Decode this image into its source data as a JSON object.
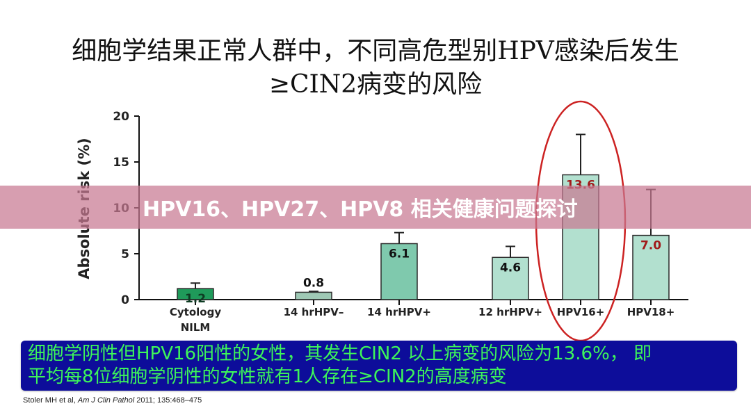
{
  "title": {
    "line1": "细胞学结果正常人群中，不同高危型别HPV感染后发生",
    "line2": "≥CIN2病变的风险"
  },
  "banner": {
    "text": "HPV16、HPV27、HPV8 相关健康问题探讨"
  },
  "callout": {
    "line1": "细胞学阴性但HPV16阳性的女性，其发生CIN2 以上病变的风险为13.6%，  即",
    "line2": "平均每8位细胞学阴性的女性就有1人存在≥CIN2的高度病变",
    "text_color": "#3df55a",
    "background_color": "#0d0d9a"
  },
  "citation": {
    "authors": "Stoler MH et al, ",
    "journal": "Am J Clin Pathol",
    "details": " 2011; 135:468–475"
  },
  "chart_data": {
    "type": "bar",
    "title": "细胞学结果正常人群中，不同高危型别HPV感染后发生≥CIN2病变的风险",
    "xlabel": "",
    "ylabel": "Absolute risk (%)",
    "ylim": [
      0,
      20
    ],
    "yticks": [
      0,
      5,
      10,
      15,
      20
    ],
    "grid": false,
    "legend": null,
    "categories": [
      "Cytology\nNILM",
      "14 hrHPV–",
      "14 hrHPV+",
      "12 hrHPV+",
      "HPV16+",
      "HPV18+"
    ],
    "category_labels": [
      [
        "Cytology",
        "NILM"
      ],
      [
        "14 hrHPV–"
      ],
      [
        "14 hrHPV+"
      ],
      [
        "12 hrHPV+"
      ],
      [
        "HPV16+"
      ],
      [
        "HPV18+"
      ]
    ],
    "values": [
      1.2,
      0.8,
      6.1,
      4.6,
      13.6,
      7.0
    ],
    "value_labels": [
      "1.2",
      "0.8",
      "6.1",
      "4.6",
      "13.6",
      "7.0"
    ],
    "error_upper": [
      1.8,
      0.9,
      7.3,
      5.8,
      18.0,
      12.0
    ],
    "bar_colors": [
      "#1f9a5a",
      "#9fc9b5",
      "#7fc9ad",
      "#b2e0cf",
      "#b2e0cf",
      "#b2e0cf"
    ],
    "label_colors": [
      "#0d3b22",
      "#111111",
      "#111111",
      "#111111",
      "#a11a1a",
      "#a11a1a"
    ],
    "label_position": [
      "inside",
      "above",
      "inside",
      "inside",
      "inside",
      "inside"
    ],
    "annotations": [
      {
        "type": "ellipse",
        "target": "HPV16+",
        "color": "#cc2222"
      }
    ]
  }
}
